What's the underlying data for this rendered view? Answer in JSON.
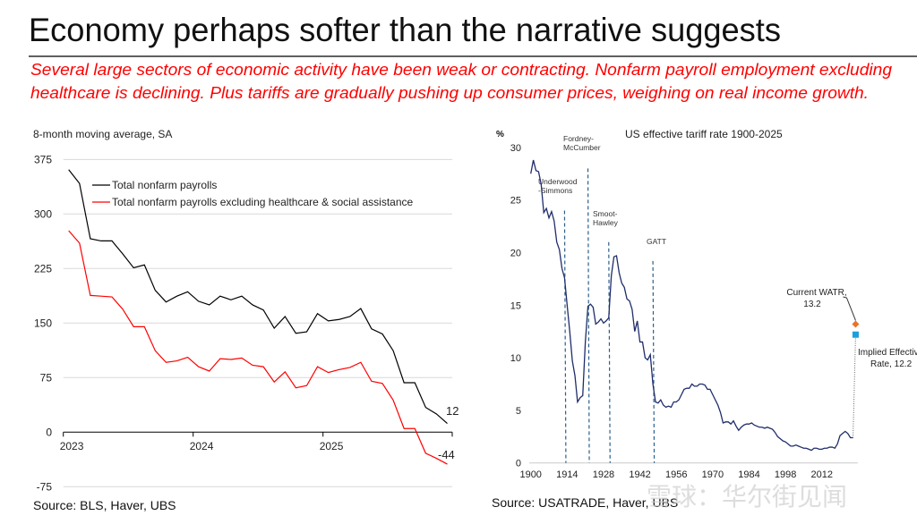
{
  "slide": {
    "title": "Economy perhaps softer than the narrative suggests",
    "subtitle_lines": [
      "Several large sectors of economic activity have been weak or contracting. Nonfarm payroll employment excluding",
      "healthcare is declining. Plus tariffs are gradually pushing up consumer prices, weighing on real income growth."
    ],
    "subtitle_color": "#ff0000",
    "watermark": "雪球：华尔街见闻"
  },
  "chart_data": [
    {
      "type": "line",
      "title": "",
      "ylabel": "8-month moving average, SA",
      "source": "Source: BLS, Haver, UBS",
      "x_tick_labels": [
        "2023",
        "2024",
        "2025"
      ],
      "y_ticks": [
        375,
        300,
        225,
        150,
        75,
        0,
        -75
      ],
      "ylim": [
        -75,
        375
      ],
      "grid": true,
      "legend_position": "top",
      "x": [
        "2023-01",
        "2023-02",
        "2023-03",
        "2023-04",
        "2023-05",
        "2023-06",
        "2023-07",
        "2023-08",
        "2023-09",
        "2023-10",
        "2023-11",
        "2023-12",
        "2024-01",
        "2024-02",
        "2024-03",
        "2024-04",
        "2024-05",
        "2024-06",
        "2024-07",
        "2024-08",
        "2024-09",
        "2024-10",
        "2024-11",
        "2024-12",
        "2025-01",
        "2025-02",
        "2025-03",
        "2025-04",
        "2025-05",
        "2025-06",
        "2025-07",
        "2025-08",
        "2025-09",
        "2025-10",
        "2025-11",
        "2025-12"
      ],
      "series": [
        {
          "name": "Total nonfarm payrolls",
          "color": "#000000",
          "values": [
            361,
            342,
            266,
            263,
            263,
            245,
            226,
            230,
            195,
            179,
            187,
            193,
            180,
            175,
            187,
            182,
            187,
            175,
            168,
            143,
            159,
            136,
            138,
            163,
            153,
            155,
            159,
            170,
            142,
            135,
            112,
            68,
            68,
            34,
            25,
            12
          ],
          "end_label": "12"
        },
        {
          "name": "Total nonfarm payrolls excluding healthcare & social assistance",
          "color": "#ff0000",
          "values": [
            277,
            260,
            188,
            187,
            186,
            169,
            145,
            145,
            112,
            96,
            98,
            103,
            90,
            84,
            101,
            100,
            102,
            92,
            90,
            69,
            83,
            61,
            64,
            90,
            82,
            86,
            89,
            96,
            70,
            67,
            44,
            5,
            5,
            -29,
            -36,
            -44
          ],
          "end_label": "-44"
        }
      ]
    },
    {
      "type": "line",
      "title": "US effective tariff rate 1900-2025",
      "ylabel": "%",
      "source": "Source: USATRADE, Haver, UBS",
      "x_ticks": [
        1900,
        1914,
        1928,
        1942,
        1956,
        1970,
        1984,
        1998,
        2012
      ],
      "y_ticks": [
        30,
        25,
        20,
        15,
        10,
        5,
        0
      ],
      "ylim": [
        0,
        30
      ],
      "xlim": [
        1900,
        2025
      ],
      "grid": false,
      "series": [
        {
          "name": "",
          "color": "#1f2d6b",
          "x_start": 1900,
          "values": [
            27.5,
            28.8,
            27.8,
            27.7,
            26.5,
            23.8,
            24.2,
            23.3,
            23.9,
            23.0,
            21.0,
            20.3,
            18.5,
            17.6,
            15.0,
            12.5,
            9.7,
            8.3,
            5.8,
            6.2,
            6.4,
            11.5,
            14.9,
            15.1,
            14.8,
            13.2,
            13.4,
            13.7,
            13.3,
            13.5,
            13.8,
            17.8,
            19.6,
            19.7,
            18.1,
            17.1,
            16.7,
            15.6,
            15.4,
            14.6,
            12.5,
            13.5,
            11.5,
            11.5,
            10.0,
            9.8,
            10.3,
            7.5,
            5.8,
            5.7,
            6.0,
            5.5,
            5.3,
            5.4,
            5.3,
            5.8,
            5.8,
            6.0,
            6.5,
            7.0,
            7.1,
            7.1,
            7.5,
            7.3,
            7.3,
            7.5,
            7.5,
            7.4,
            7.0,
            7.0,
            6.5,
            6.0,
            5.5,
            4.8,
            3.8,
            3.9,
            3.9,
            3.7,
            4.0,
            3.5,
            3.1,
            3.4,
            3.6,
            3.7,
            3.7,
            3.8,
            3.6,
            3.5,
            3.4,
            3.4,
            3.3,
            3.4,
            3.3,
            3.2,
            2.9,
            2.5,
            2.3,
            2.1,
            2.0,
            1.8,
            1.6,
            1.6,
            1.7,
            1.6,
            1.5,
            1.4,
            1.4,
            1.3,
            1.2,
            1.4,
            1.4,
            1.3,
            1.3,
            1.4,
            1.4,
            1.5,
            1.5,
            1.4,
            1.8,
            2.6,
            2.8,
            3.0,
            2.8,
            2.4,
            2.4
          ]
        }
      ],
      "points": [
        {
          "label_lines": [
            "Current WATR,",
            "13.2"
          ],
          "year": 2025,
          "value": 13.2,
          "color": "#e8732a",
          "shape": "diamond"
        },
        {
          "label_lines": [
            "Implied Effective",
            "Rate, 12.2"
          ],
          "year": 2025,
          "value": 12.2,
          "color": "#1aa0dc",
          "shape": "square"
        }
      ],
      "events": [
        {
          "label_lines": [
            "Underwood",
            "-Simmons"
          ],
          "year": 1913,
          "top": 24
        },
        {
          "label_lines": [
            "Fordney-",
            "McCumber"
          ],
          "year": 1922,
          "top": 28
        },
        {
          "label_lines": [
            "Smoot-",
            "Hawley"
          ],
          "year": 1930,
          "top": 21
        },
        {
          "label_lines": [
            "GATT"
          ],
          "year": 1947,
          "top": 19.2
        }
      ],
      "event_line_color": "#2a5f8a"
    }
  ]
}
